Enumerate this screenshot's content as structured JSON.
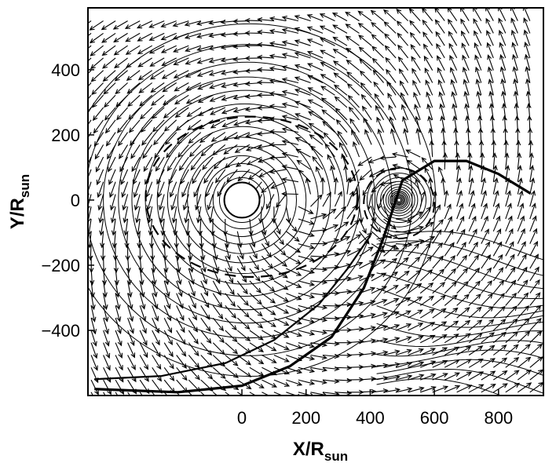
{
  "chart_data": {
    "type": "vector-field-contour",
    "title": "",
    "xlabel": {
      "main": "X/R",
      "sub": "sun"
    },
    "ylabel": {
      "main": "Y/R",
      "sub": "sun"
    },
    "xlim": [
      -480,
      940
    ],
    "ylim": [
      -600,
      590
    ],
    "xticks": [
      0,
      200,
      400,
      600,
      800
    ],
    "xtick_labels": [
      "0",
      "200",
      "400",
      "600",
      "800"
    ],
    "yticks": [
      400,
      200,
      0,
      -200,
      -400
    ],
    "ytick_labels": [
      "400",
      "200",
      "0",
      "−200",
      "−400"
    ],
    "grid": false,
    "legend": "none",
    "primary_star": {
      "x": 0,
      "y": 0,
      "radius": 55
    },
    "secondary_star": {
      "x": 490,
      "y": 0
    },
    "spiral_arm_outer": [
      [
        -460,
        -580
      ],
      [
        -200,
        -590
      ],
      [
        0,
        -570
      ],
      [
        150,
        -510
      ],
      [
        280,
        -420
      ],
      [
        380,
        -270
      ],
      [
        440,
        -120
      ],
      [
        500,
        60
      ],
      [
        600,
        120
      ],
      [
        700,
        120
      ],
      [
        800,
        80
      ],
      [
        900,
        20
      ]
    ],
    "spiral_arm_inner": [
      [
        -460,
        -550
      ],
      [
        -250,
        -540
      ],
      [
        -50,
        -500
      ],
      [
        100,
        -430
      ],
      [
        240,
        -320
      ],
      [
        330,
        -210
      ],
      [
        400,
        -110
      ]
    ],
    "dashed_orbit": {
      "cx": 30,
      "cy": 10,
      "rx": 330,
      "ry": 250
    },
    "dashed_secondary_lobe": {
      "cx": 490,
      "cy": -10,
      "r": 110
    },
    "colors": {
      "lines": "#000000",
      "background": "#ffffff"
    }
  }
}
